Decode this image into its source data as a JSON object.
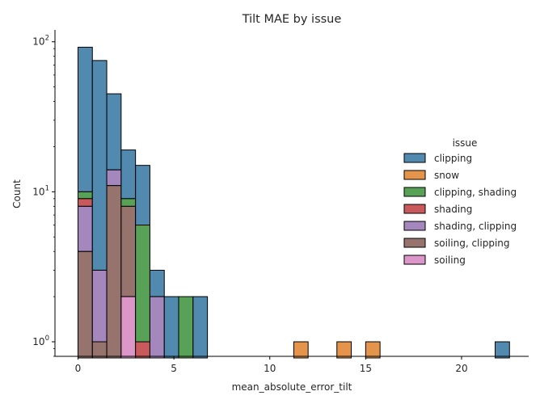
{
  "chart_data": {
    "type": "bar",
    "subtype": "stacked-histogram",
    "title": "Tilt MAE by issue",
    "xlabel": "mean_absolute_error_tilt",
    "ylabel": "Count",
    "yscale": "log",
    "xlim": [
      -1.2,
      23.5
    ],
    "ylim": [
      0.8,
      120
    ],
    "x_ticks": [
      0,
      5,
      10,
      15,
      20
    ],
    "y_ticks": [
      {
        "base": "10",
        "exp": "0",
        "value": 1
      },
      {
        "base": "10",
        "exp": "1",
        "value": 10
      },
      {
        "base": "10",
        "exp": "2",
        "value": 100
      }
    ],
    "grid": false,
    "legend": {
      "title": "issue",
      "placement": "right",
      "entries": [
        "clipping",
        "snow",
        "clipping, shading",
        "shading",
        "shading, clipping",
        "soiling, clipping",
        "soiling"
      ]
    },
    "colors": {
      "clipping": "#3274a1",
      "snow": "#e1812c",
      "clipping, shading": "#3a923a",
      "shading": "#c03d3e",
      "shading, clipping": "#9372b2",
      "soiling, clipping": "#845b53",
      "soiling": "#d684bd"
    },
    "bins": [
      {
        "x0": 0.0,
        "x1": 0.75,
        "segments": [
          [
            "soiling, clipping",
            4
          ],
          [
            "shading, clipping",
            8
          ],
          [
            "shading",
            9
          ],
          [
            "clipping, shading",
            10
          ],
          [
            "clipping",
            92
          ]
        ]
      },
      {
        "x0": 0.75,
        "x1": 1.5,
        "segments": [
          [
            "soiling, clipping",
            1
          ],
          [
            "shading, clipping",
            3
          ],
          [
            "clipping",
            75
          ]
        ]
      },
      {
        "x0": 1.5,
        "x1": 2.25,
        "segments": [
          [
            "soiling, clipping",
            11
          ],
          [
            "shading, clipping",
            14
          ],
          [
            "clipping",
            45
          ]
        ]
      },
      {
        "x0": 2.25,
        "x1": 3.0,
        "segments": [
          [
            "soiling",
            2
          ],
          [
            "soiling, clipping",
            8
          ],
          [
            "clipping, shading",
            9
          ],
          [
            "clipping",
            19
          ]
        ]
      },
      {
        "x0": 3.0,
        "x1": 3.75,
        "segments": [
          [
            "shading",
            1
          ],
          [
            "clipping, shading",
            6
          ],
          [
            "clipping",
            15
          ]
        ]
      },
      {
        "x0": 3.75,
        "x1": 4.5,
        "segments": [
          [
            "shading, clipping",
            2
          ],
          [
            "clipping",
            3
          ]
        ]
      },
      {
        "x0": 4.5,
        "x1": 5.25,
        "segments": [
          [
            "clipping",
            2
          ]
        ]
      },
      {
        "x0": 5.25,
        "x1": 6.0,
        "segments": [
          [
            "clipping, shading",
            2
          ]
        ]
      },
      {
        "x0": 6.0,
        "x1": 6.75,
        "segments": [
          [
            "clipping",
            2
          ]
        ]
      },
      {
        "x0": 11.25,
        "x1": 12.0,
        "segments": [
          [
            "snow",
            1
          ]
        ]
      },
      {
        "x0": 13.5,
        "x1": 14.25,
        "segments": [
          [
            "snow",
            1
          ]
        ]
      },
      {
        "x0": 15.0,
        "x1": 15.75,
        "segments": [
          [
            "snow",
            1
          ]
        ]
      },
      {
        "x0": 21.75,
        "x1": 22.5,
        "segments": [
          [
            "clipping",
            1
          ]
        ]
      }
    ]
  }
}
